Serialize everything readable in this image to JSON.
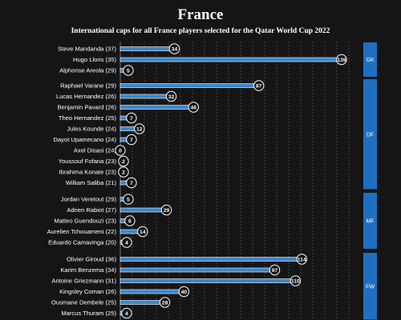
{
  "header": {
    "title": "France",
    "subtitle": "International caps for all France players selected for the Qatar World Cup 2022"
  },
  "colors": {
    "background": "#151515",
    "bar": "#3a86c8",
    "group_box": "#1f6fc0",
    "text": "#ffffff",
    "grid": "#5a5a5a"
  },
  "chart_data": {
    "type": "bar",
    "orientation": "horizontal",
    "title": "France",
    "subtitle": "International caps for all France players selected for the Qatar World Cup 2022",
    "xlabel": "",
    "ylabel": "",
    "xlim": [
      0,
      140
    ],
    "grid": "vertical dashed",
    "groups": [
      {
        "label": "GK",
        "categories": [
          "Steve Mandanda (37)",
          "Hugo Lloris (35)",
          "Alphonse Areola (29)"
        ],
        "values": [
          34,
          139,
          5
        ]
      },
      {
        "label": "DF",
        "categories": [
          "Raphael Varane (29)",
          "Lucas Hernandez (26)",
          "Benjamin Pavard (26)",
          "Theo Hernandez (25)",
          "Jules Kounde (24)",
          "Dayot Upamecano (24)",
          "Axel Disasi (24)",
          "Youssouf Fofana (23)",
          "Ibrahima Konate (23)",
          "William Saliba (21)"
        ],
        "values": [
          87,
          32,
          46,
          7,
          12,
          7,
          0,
          2,
          2,
          7
        ]
      },
      {
        "label": "MF",
        "categories": [
          "Jordan Veretout (29)",
          "Adrien Rabiot (27)",
          "Matteo Guendouzi (23)",
          "Aurelien Tchouameni (22)",
          "Eduardo Camavinga (20)"
        ],
        "values": [
          5,
          29,
          6,
          14,
          4
        ]
      },
      {
        "label": "FW",
        "categories": [
          "Olivier Giroud (36)",
          "Karim Benzema (34)",
          "Antoine Griezmann (31)",
          "Kingsley Coman (26)",
          "Ousmane Dembele (25)",
          "Marcus Thuram (25)"
        ],
        "values": [
          114,
          97,
          110,
          40,
          28,
          4
        ]
      }
    ]
  }
}
